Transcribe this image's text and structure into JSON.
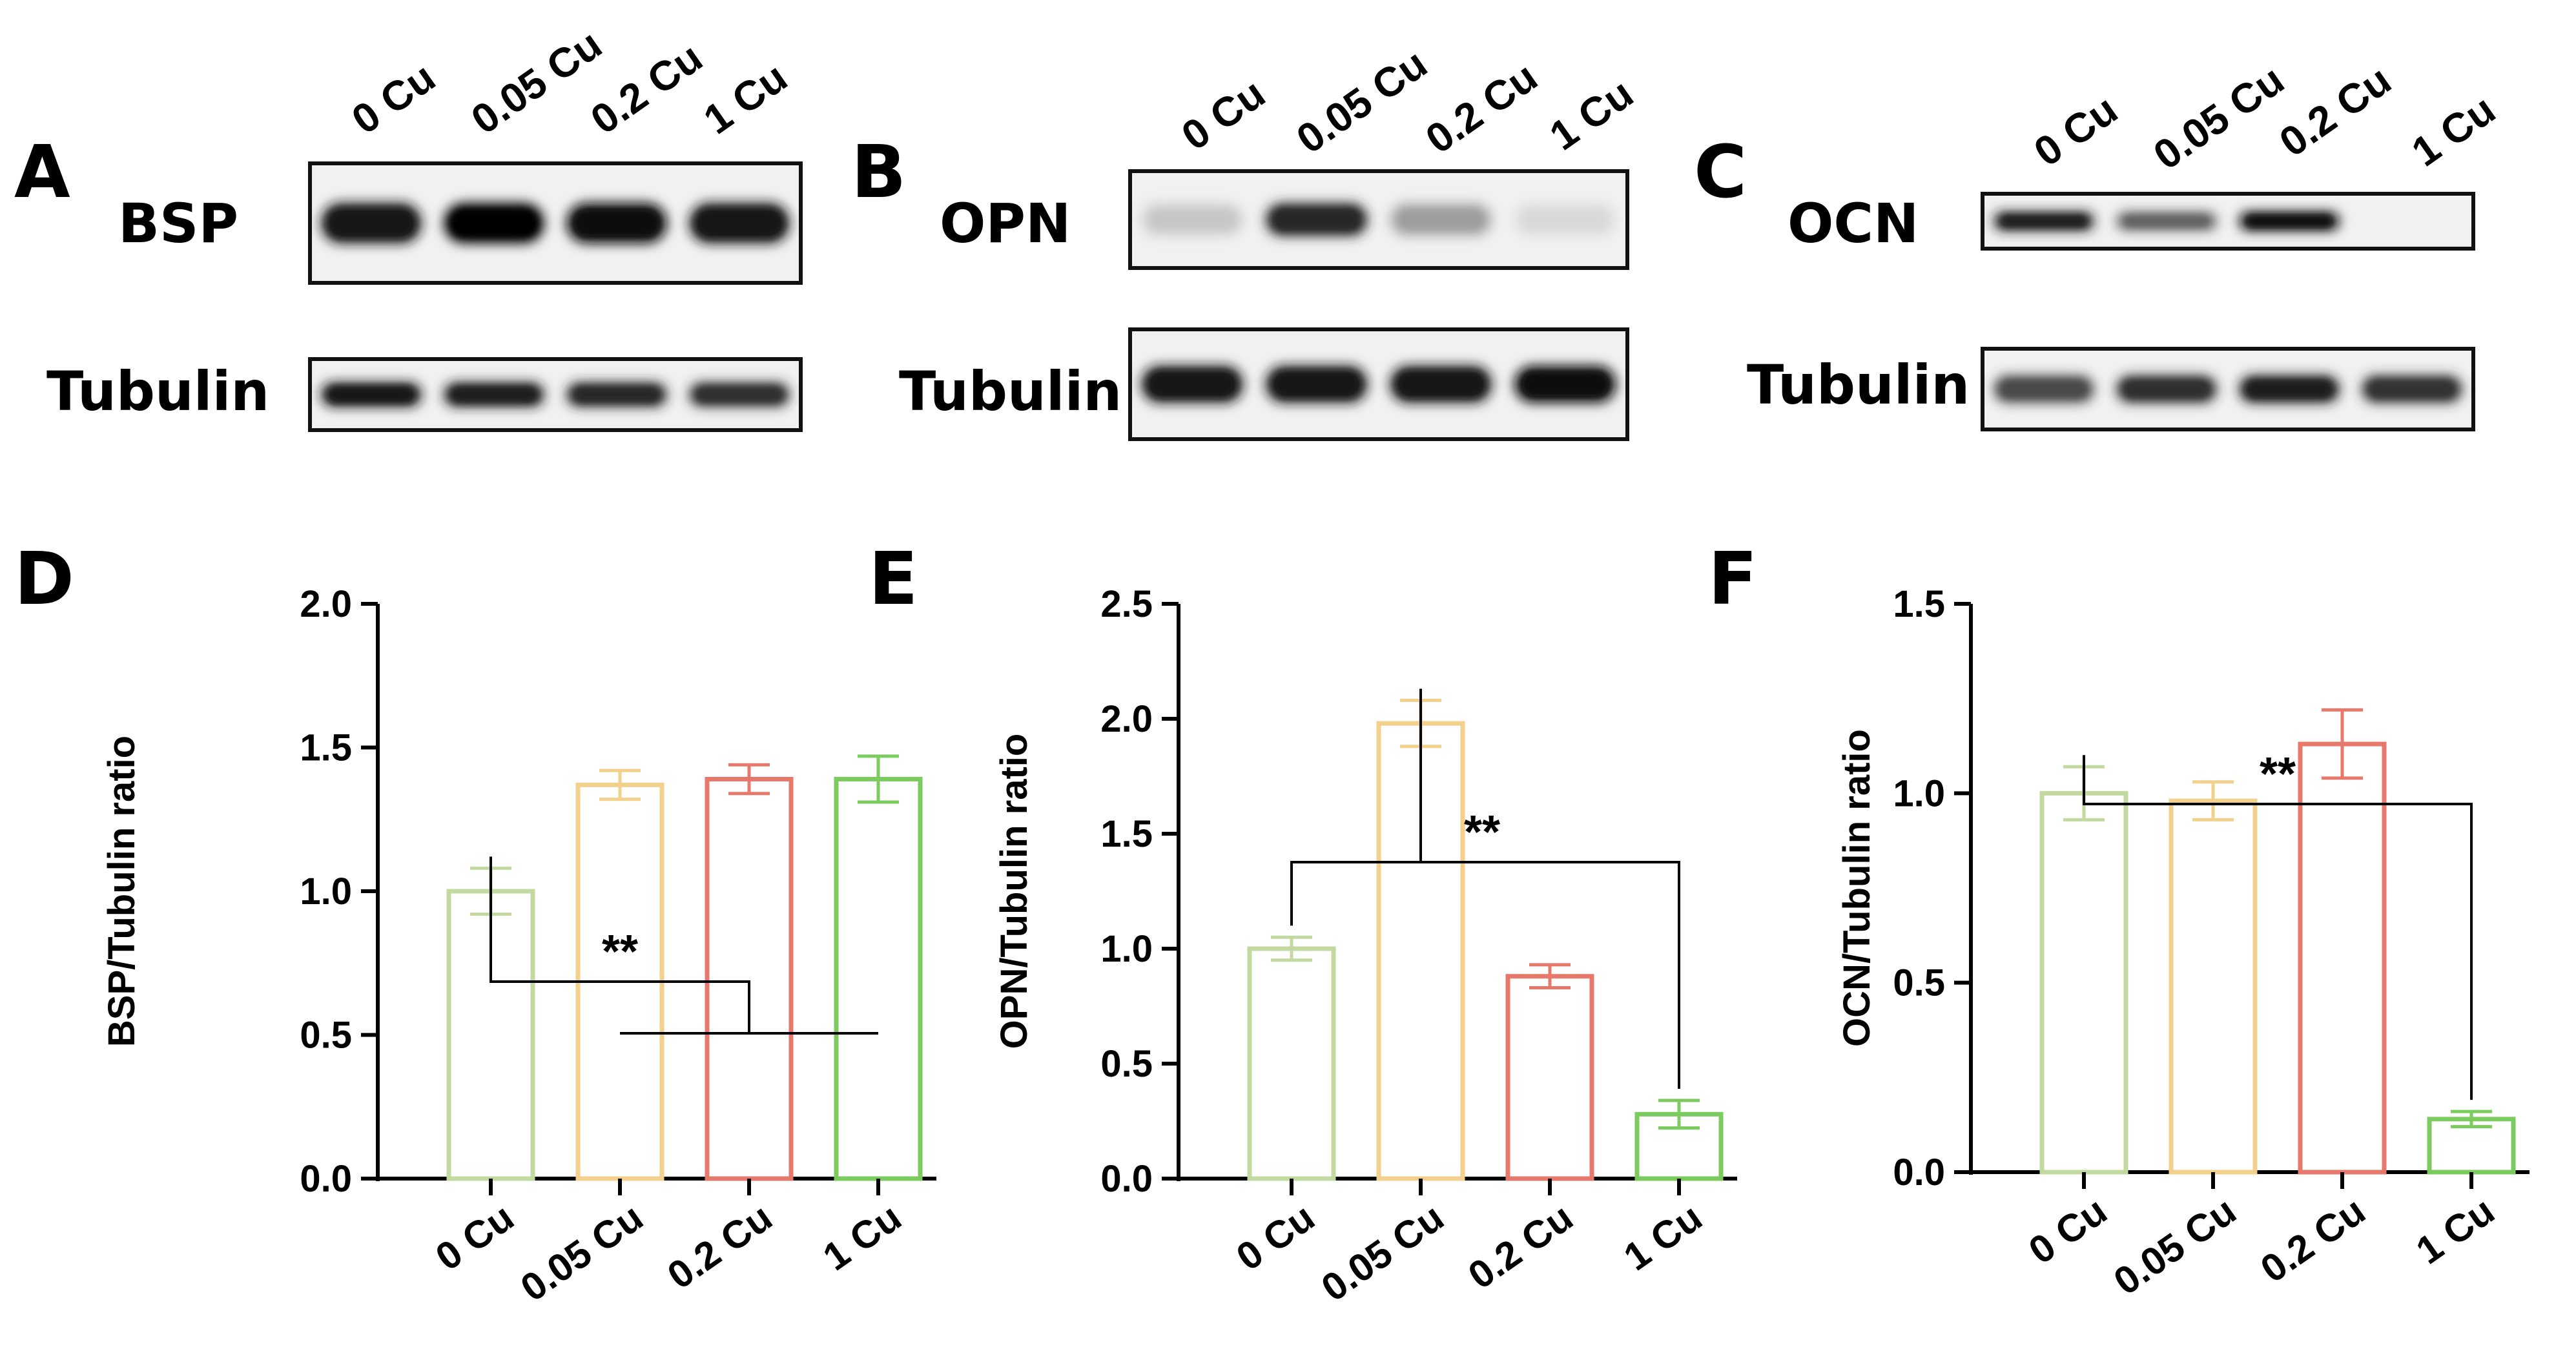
{
  "colors": {
    "0 Cu": "#c2d9a0",
    "0.05 Cu": "#f3d08c",
    "0.2 Cu": "#e6786c",
    "1 Cu": "#7ccb5e",
    "axis": "#000000"
  },
  "blots": [
    {
      "letter": "A",
      "protein": "BSP",
      "loading": "Tubulin",
      "lanes": [
        "0 Cu",
        "0.05 Cu",
        "0.2 Cu",
        "1 Cu"
      ],
      "protein_intensity": [
        0.9,
        0.98,
        0.95,
        0.93
      ],
      "loading_intensity": [
        0.9,
        0.88,
        0.85,
        0.82
      ]
    },
    {
      "letter": "B",
      "protein": "OPN",
      "loading": "Tubulin",
      "lanes": [
        "0 Cu",
        "0.05 Cu",
        "0.2 Cu",
        "1 Cu"
      ],
      "protein_intensity": [
        0.3,
        0.85,
        0.45,
        0.22
      ],
      "loading_intensity": [
        0.92,
        0.9,
        0.92,
        0.97
      ]
    },
    {
      "letter": "C",
      "protein": "OCN",
      "loading": "Tubulin",
      "lanes": [
        "0 Cu",
        "0.05 Cu",
        "0.2 Cu",
        "1 Cu"
      ],
      "protein_intensity": [
        0.88,
        0.65,
        0.95,
        0.03
      ],
      "loading_intensity": [
        0.72,
        0.82,
        0.88,
        0.8
      ]
    }
  ],
  "chart_data": [
    {
      "letter": "D",
      "type": "bar",
      "categories": [
        "0 Cu",
        "0.05 Cu",
        "0.2 Cu",
        "1 Cu"
      ],
      "values": [
        1.0,
        1.37,
        1.39,
        1.39
      ],
      "errors": [
        0.08,
        0.05,
        0.05,
        0.08
      ],
      "ylabel": "BSP/Tubulin ratio",
      "ylim": [
        0,
        2.0
      ],
      "yticks": [
        "0.0",
        "0.5",
        "1.0",
        "1.5",
        "2.0"
      ],
      "significance": "**",
      "comparison": "0 Cu vs 0.05 Cu, 0.2 Cu, 1 Cu"
    },
    {
      "letter": "E",
      "type": "bar",
      "categories": [
        "0 Cu",
        "0.05 Cu",
        "0.2 Cu",
        "1 Cu"
      ],
      "values": [
        1.0,
        1.98,
        0.88,
        0.28
      ],
      "errors": [
        0.05,
        0.1,
        0.05,
        0.06
      ],
      "ylabel": "OPN/Tubulin ratio",
      "ylim": [
        0,
        2.5
      ],
      "yticks": [
        "0.0",
        "0.5",
        "1.0",
        "1.5",
        "2.0",
        "2.5"
      ],
      "significance": "**",
      "comparison": "0.05 Cu vs 0 Cu and 1 Cu"
    },
    {
      "letter": "F",
      "type": "bar",
      "categories": [
        "0 Cu",
        "0.05 Cu",
        "0.2 Cu",
        "1 Cu"
      ],
      "values": [
        1.0,
        0.98,
        1.13,
        0.14
      ],
      "errors": [
        0.07,
        0.05,
        0.09,
        0.02
      ],
      "ylabel": "OCN/Tubulin ratio",
      "ylim": [
        0,
        1.5
      ],
      "yticks": [
        "0.0",
        "0.5",
        "1.0",
        "1.5"
      ],
      "significance": "**",
      "comparison": "0 Cu vs 1 Cu"
    }
  ]
}
